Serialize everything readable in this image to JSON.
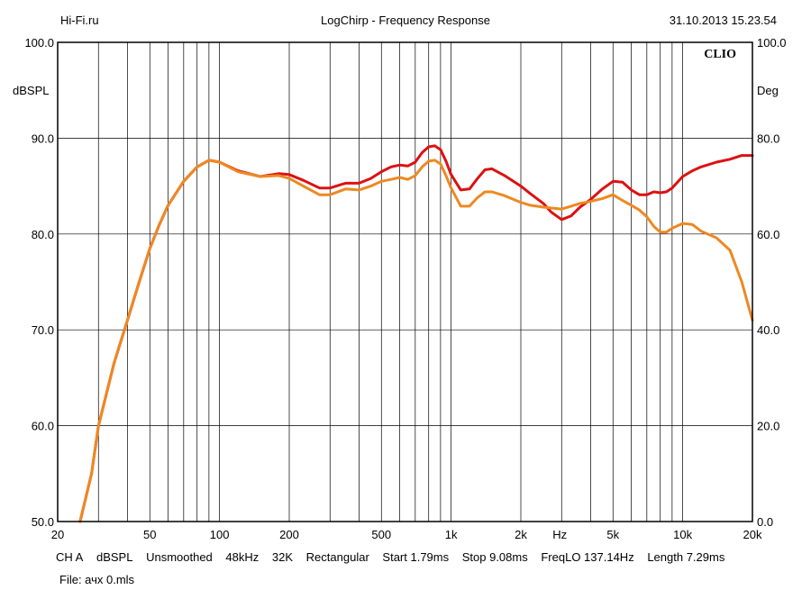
{
  "header": {
    "site": "Hi-Fi.ru",
    "title": "LogChirp - Frequency Response",
    "timestamp": "31.10.2013 15.23.54"
  },
  "brand_mark": "CLIO",
  "footer": {
    "settings": [
      "CH A",
      "dBSPL",
      "Unsmoothed",
      "48kHz",
      "32K",
      "Rectangular",
      "Start 1.79ms",
      "Stop 9.08ms",
      "FreqLO 137.14Hz",
      "Length 7.29ms"
    ],
    "file": "File: ачх 0.mls"
  },
  "colors": {
    "series_red": "#dd1111",
    "series_orange": "#ee8822",
    "grid": "#000000",
    "background": "#ffffff"
  },
  "chart_data": {
    "type": "line",
    "x_scale": "log",
    "xlim": [
      20,
      20000
    ],
    "ylim": [
      50,
      100
    ],
    "y2lim": [
      0,
      100
    ],
    "ylabel": "dBSPL",
    "y2label": "Deg",
    "xunit_label": "Hz",
    "grid": true,
    "x_ticks": [
      {
        "value": 20,
        "label": "20"
      },
      {
        "value": 50,
        "label": "50"
      },
      {
        "value": 100,
        "label": "100"
      },
      {
        "value": 200,
        "label": "200"
      },
      {
        "value": 500,
        "label": "500"
      },
      {
        "value": 1000,
        "label": "1k"
      },
      {
        "value": 2000,
        "label": "2k"
      },
      {
        "value": 5000,
        "label": "5k"
      },
      {
        "value": 10000,
        "label": "10k"
      },
      {
        "value": 20000,
        "label": "20k"
      }
    ],
    "y_ticks_left": [
      "50.0",
      "60.0",
      "70.0",
      "80.0",
      "90.0",
      "100.0"
    ],
    "y_ticks_right": [
      "0.0",
      "20.0",
      "40.0",
      "60.0",
      "80.0",
      "100.0"
    ],
    "series": [
      {
        "color": "#dd1111",
        "points": [
          [
            25,
            50
          ],
          [
            28,
            55
          ],
          [
            30,
            60
          ],
          [
            35,
            66.5
          ],
          [
            40,
            71
          ],
          [
            45,
            75
          ],
          [
            50,
            78.5
          ],
          [
            55,
            81
          ],
          [
            60,
            83
          ],
          [
            70,
            85.5
          ],
          [
            80,
            87
          ],
          [
            90,
            87.7
          ],
          [
            100,
            87.5
          ],
          [
            120,
            86.6
          ],
          [
            150,
            86
          ],
          [
            180,
            86.3
          ],
          [
            200,
            86.2
          ],
          [
            230,
            85.6
          ],
          [
            270,
            84.8
          ],
          [
            300,
            84.8
          ],
          [
            350,
            85.3
          ],
          [
            400,
            85.3
          ],
          [
            450,
            85.8
          ],
          [
            500,
            86.5
          ],
          [
            550,
            87
          ],
          [
            600,
            87.2
          ],
          [
            650,
            87.1
          ],
          [
            700,
            87.5
          ],
          [
            750,
            88.5
          ],
          [
            800,
            89.1
          ],
          [
            850,
            89.2
          ],
          [
            900,
            88.8
          ],
          [
            950,
            87.6
          ],
          [
            1000,
            86.2
          ],
          [
            1100,
            84.6
          ],
          [
            1200,
            84.7
          ],
          [
            1300,
            85.8
          ],
          [
            1400,
            86.7
          ],
          [
            1500,
            86.8
          ],
          [
            1700,
            86.1
          ],
          [
            2000,
            85
          ],
          [
            2200,
            84.2
          ],
          [
            2500,
            83.2
          ],
          [
            2700,
            82.3
          ],
          [
            3000,
            81.5
          ],
          [
            3300,
            81.9
          ],
          [
            3600,
            82.8
          ],
          [
            4000,
            83.6
          ],
          [
            4500,
            84.7
          ],
          [
            5000,
            85.5
          ],
          [
            5500,
            85.4
          ],
          [
            6000,
            84.6
          ],
          [
            6500,
            84.1
          ],
          [
            7000,
            84.1
          ],
          [
            7500,
            84.4
          ],
          [
            8000,
            84.3
          ],
          [
            8500,
            84.4
          ],
          [
            9000,
            84.8
          ],
          [
            10000,
            86
          ],
          [
            11000,
            86.6
          ],
          [
            12000,
            87
          ],
          [
            14000,
            87.5
          ],
          [
            16000,
            87.8
          ],
          [
            18000,
            88.2
          ],
          [
            20000,
            88.2
          ]
        ]
      },
      {
        "color": "#ee8822",
        "points": [
          [
            25,
            50
          ],
          [
            28,
            55
          ],
          [
            30,
            60
          ],
          [
            35,
            66.5
          ],
          [
            40,
            71
          ],
          [
            45,
            75
          ],
          [
            50,
            78.5
          ],
          [
            55,
            81
          ],
          [
            60,
            83
          ],
          [
            70,
            85.5
          ],
          [
            80,
            87
          ],
          [
            90,
            87.7
          ],
          [
            100,
            87.5
          ],
          [
            120,
            86.5
          ],
          [
            150,
            86
          ],
          [
            180,
            86.1
          ],
          [
            200,
            85.8
          ],
          [
            230,
            85
          ],
          [
            270,
            84.1
          ],
          [
            300,
            84.1
          ],
          [
            350,
            84.7
          ],
          [
            400,
            84.6
          ],
          [
            450,
            85
          ],
          [
            500,
            85.5
          ],
          [
            550,
            85.7
          ],
          [
            600,
            85.9
          ],
          [
            650,
            85.7
          ],
          [
            700,
            86.1
          ],
          [
            750,
            87
          ],
          [
            800,
            87.6
          ],
          [
            850,
            87.7
          ],
          [
            900,
            87.3
          ],
          [
            950,
            86.1
          ],
          [
            1000,
            84.8
          ],
          [
            1100,
            82.9
          ],
          [
            1200,
            82.9
          ],
          [
            1300,
            83.8
          ],
          [
            1400,
            84.4
          ],
          [
            1500,
            84.4
          ],
          [
            1700,
            84
          ],
          [
            2000,
            83.3
          ],
          [
            2200,
            83
          ],
          [
            2500,
            82.8
          ],
          [
            3000,
            82.6
          ],
          [
            3300,
            82.9
          ],
          [
            3600,
            83.2
          ],
          [
            4000,
            83.4
          ],
          [
            4500,
            83.7
          ],
          [
            5000,
            84.1
          ],
          [
            5500,
            83.5
          ],
          [
            6000,
            83
          ],
          [
            6500,
            82.5
          ],
          [
            7000,
            81.8
          ],
          [
            7500,
            80.8
          ],
          [
            8000,
            80.2
          ],
          [
            8500,
            80.2
          ],
          [
            9000,
            80.6
          ],
          [
            10000,
            81.1
          ],
          [
            11000,
            81
          ],
          [
            12000,
            80.3
          ],
          [
            14000,
            79.6
          ],
          [
            16000,
            78.3
          ],
          [
            18000,
            75
          ],
          [
            20000,
            71
          ]
        ]
      }
    ]
  }
}
